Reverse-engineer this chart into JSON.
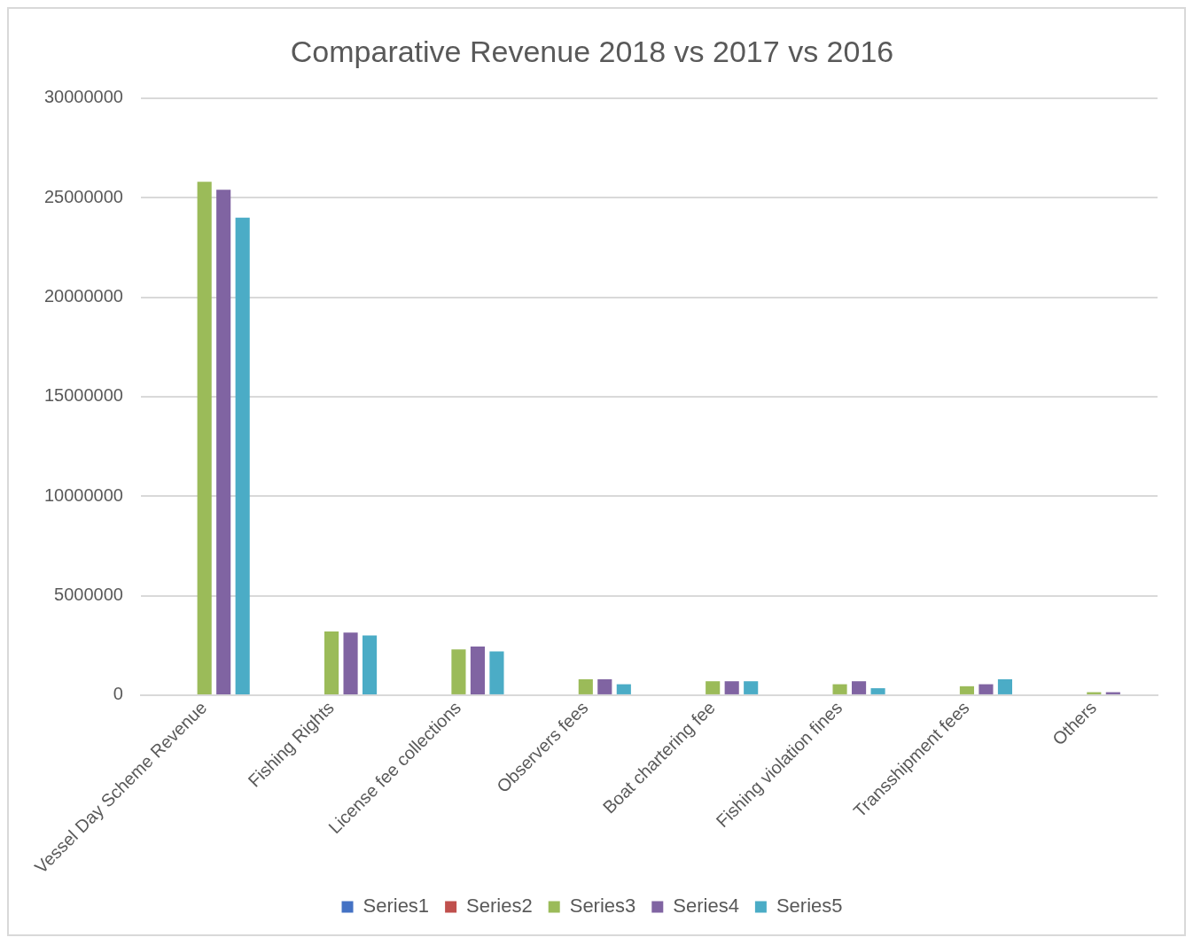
{
  "chart_data": {
    "type": "bar",
    "title": "Comparative Revenue 2018 vs 2017 vs 2016",
    "categories": [
      "Vessel Day Scheme Revenue",
      "Fishing Rights",
      "License fee collections",
      "Observers fees",
      "Boat chartering fee",
      "Fishing violation fines",
      "Transshipment fees",
      "Others"
    ],
    "series": [
      {
        "name": "Series1",
        "color": "#4472c4",
        "values": [
          null,
          null,
          null,
          null,
          null,
          null,
          null,
          null
        ]
      },
      {
        "name": "Series2",
        "color": "#c0504d",
        "values": [
          null,
          null,
          null,
          null,
          null,
          null,
          null,
          null
        ]
      },
      {
        "name": "Series3",
        "color": "#9bbb59",
        "values": [
          25800000,
          3200000,
          2300000,
          800000,
          700000,
          550000,
          450000,
          150000
        ]
      },
      {
        "name": "Series4",
        "color": "#8064a2",
        "values": [
          25400000,
          3150000,
          2450000,
          800000,
          700000,
          700000,
          550000,
          150000
        ]
      },
      {
        "name": "Series5",
        "color": "#4bacc6",
        "values": [
          24000000,
          3000000,
          2200000,
          550000,
          700000,
          350000,
          800000,
          null
        ]
      }
    ],
    "ylim": [
      0,
      30000000
    ],
    "yticks": [
      0,
      5000000,
      10000000,
      15000000,
      20000000,
      25000000,
      30000000
    ],
    "grid": "y",
    "legend": "bottom"
  }
}
